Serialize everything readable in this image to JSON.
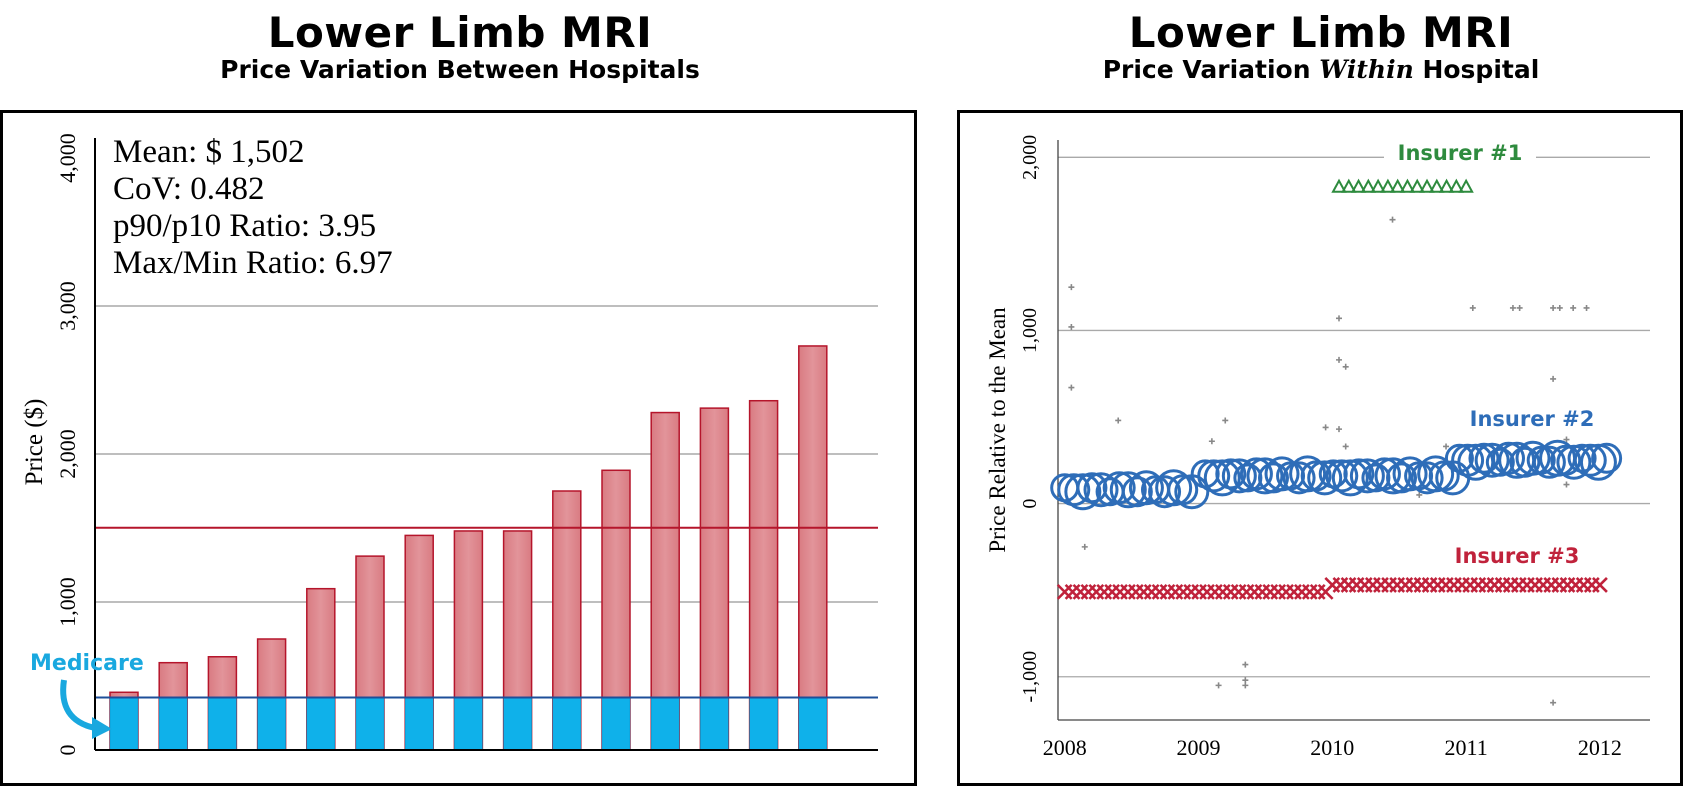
{
  "left": {
    "title": "Lower Limb MRI",
    "subtitle": "Price Variation Between Hospitals",
    "chart_data": {
      "type": "bar",
      "ylabel": "Price ($)",
      "ylim": [
        0,
        4000
      ],
      "yticks": [
        0,
        1000,
        2000,
        3000,
        4000
      ],
      "ytick_labels": [
        "0",
        "1,000",
        "2,000",
        "3,000",
        "4,000"
      ],
      "grid": true,
      "mean_line": 1502,
      "medicare_line": 355,
      "medicare_label": "Medicare",
      "stats": [
        "Mean: $ 1,502",
        "CoV: 0.482",
        "p90/p10 Ratio: 3.95",
        "Max/Min Ratio: 6.97"
      ],
      "values": [
        390,
        590,
        630,
        750,
        1090,
        1310,
        1450,
        1480,
        1480,
        1750,
        1890,
        2280,
        2310,
        2360,
        2730
      ],
      "medicare_values": [
        355,
        355,
        355,
        355,
        355,
        355,
        355,
        355,
        355,
        355,
        355,
        355,
        355,
        355,
        355
      ]
    }
  },
  "right": {
    "title": "Lower Limb MRI",
    "subtitle_pre": "Price Variation ",
    "subtitle_em": "Within",
    "subtitle_post": " Hospital",
    "chart_data": {
      "type": "scatter",
      "ylabel": "Price Relative to the Mean",
      "ylim": [
        -1250,
        2100
      ],
      "yticks": [
        -1000,
        0,
        1000,
        2000
      ],
      "ytick_labels": [
        "-1,000",
        "0",
        "1,000",
        "2,000"
      ],
      "xlim": [
        2007.95,
        2012.15
      ],
      "xticks": [
        2008,
        2009,
        2010,
        2011,
        2012
      ],
      "xtick_labels": [
        "2008",
        "2009",
        "2010",
        "2011",
        "2012"
      ],
      "grid": true,
      "series": [
        {
          "name": "Insurer #1",
          "marker": "triangle",
          "color": "#2e8b3e",
          "y": 1830,
          "x_start": 2010.05,
          "x_end": 2011.0,
          "count": 14
        },
        {
          "name": "Insurer #2",
          "marker": "circle",
          "color": "#2e6db8",
          "segments": [
            {
              "x_start": 2008.0,
              "x_end": 2008.95,
              "y": 80,
              "count": 15
            },
            {
              "x_start": 2009.05,
              "x_end": 2010.9,
              "y": 160,
              "count": 30
            },
            {
              "x_start": 2010.95,
              "x_end": 2012.05,
              "y": 250,
              "count": 19
            }
          ]
        },
        {
          "name": "Insurer #3",
          "marker": "x",
          "color": "#c0223b",
          "segments": [
            {
              "x_start": 2008.0,
              "x_end": 2009.95,
              "y": -510,
              "count": 34
            },
            {
              "x_start": 2010.0,
              "x_end": 2012.0,
              "y": -470,
              "count": 34
            }
          ]
        }
      ],
      "other_points": [
        [
          2008.05,
          1250
        ],
        [
          2008.05,
          1020
        ],
        [
          2008.05,
          670
        ],
        [
          2008.15,
          -250
        ],
        [
          2008.4,
          480
        ],
        [
          2009.1,
          360
        ],
        [
          2009.2,
          480
        ],
        [
          2009.15,
          -1050
        ],
        [
          2009.35,
          -1050
        ],
        [
          2009.35,
          -1020
        ],
        [
          2009.35,
          -930
        ],
        [
          2009.95,
          440
        ],
        [
          2010.05,
          1070
        ],
        [
          2010.05,
          830
        ],
        [
          2010.05,
          430
        ],
        [
          2010.1,
          790
        ],
        [
          2010.1,
          330
        ],
        [
          2010.45,
          1640
        ],
        [
          2010.65,
          50
        ],
        [
          2010.85,
          330
        ],
        [
          2011.05,
          1130
        ],
        [
          2011.35,
          1130
        ],
        [
          2011.4,
          1130
        ],
        [
          2011.65,
          1130
        ],
        [
          2011.7,
          1130
        ],
        [
          2011.8,
          1130
        ],
        [
          2011.9,
          1130
        ],
        [
          2011.65,
          720
        ],
        [
          2011.75,
          370
        ],
        [
          2011.75,
          110
        ],
        [
          2011.65,
          -1150
        ]
      ]
    }
  }
}
